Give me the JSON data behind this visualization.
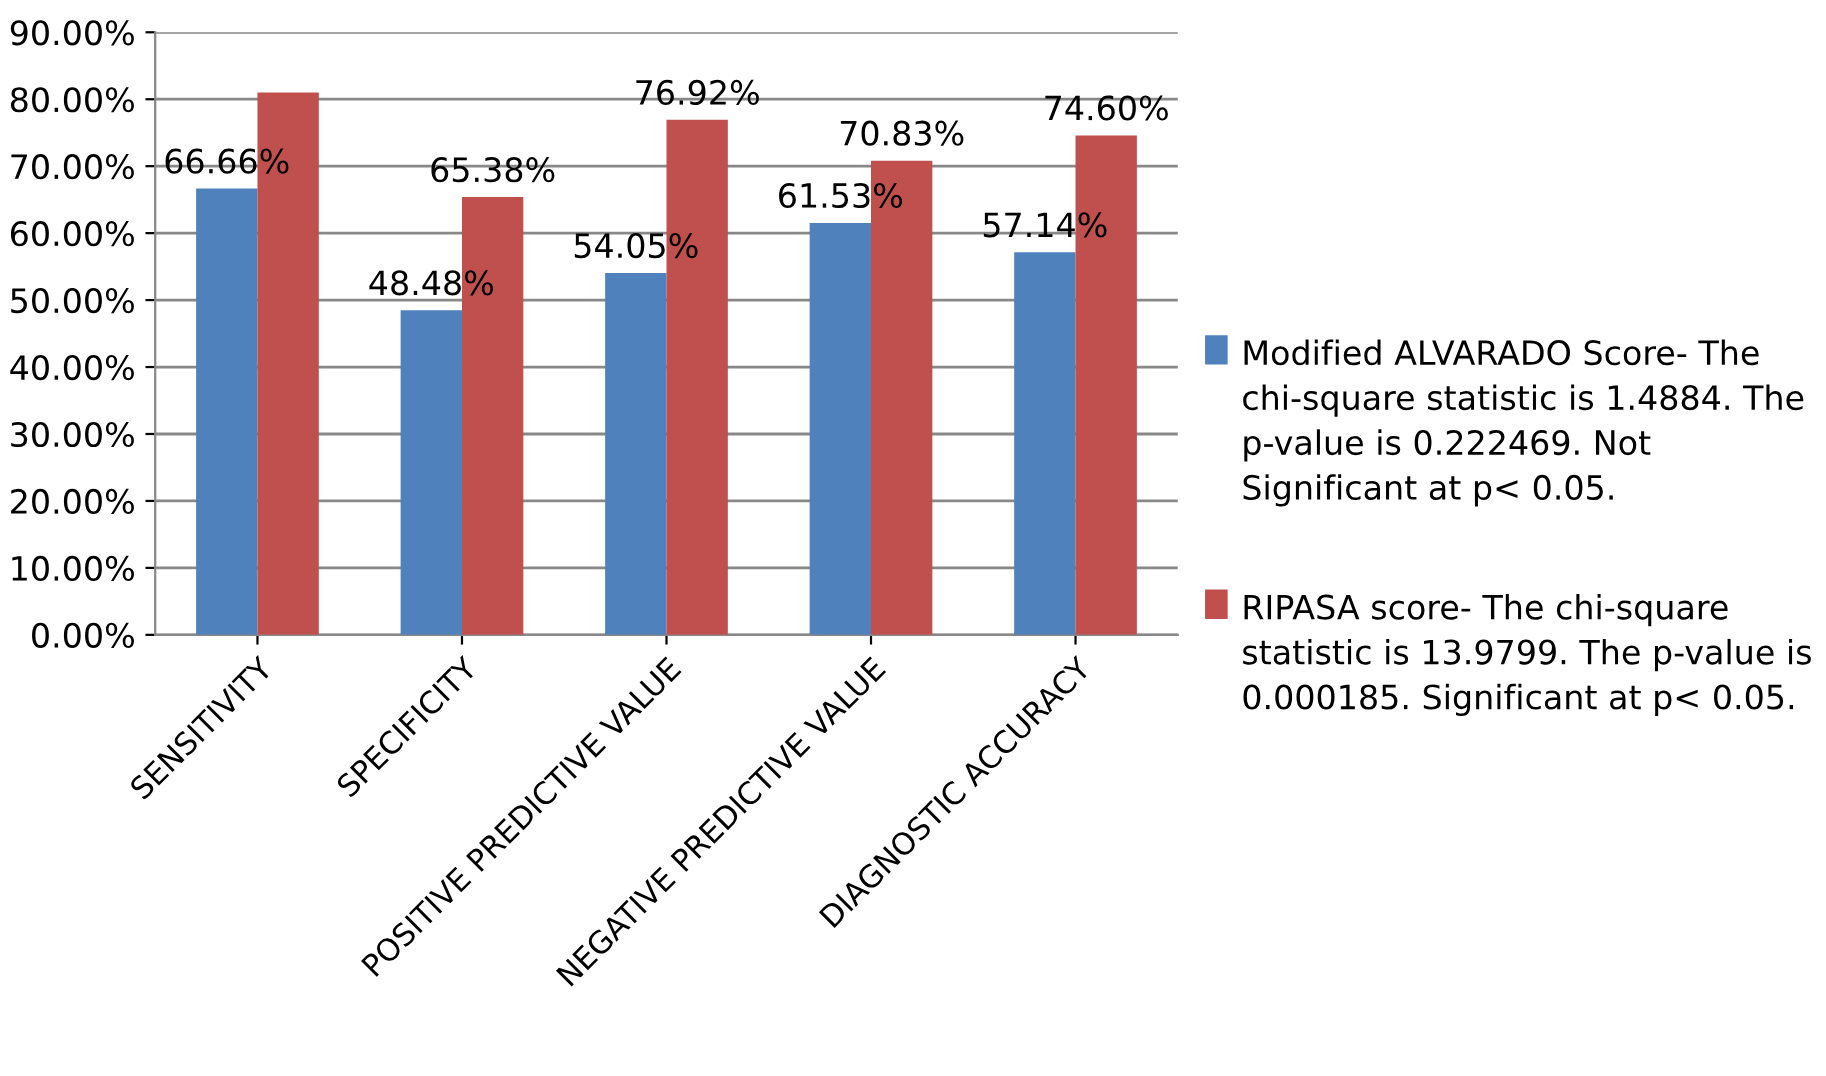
{
  "chart_data": {
    "type": "bar",
    "categories": [
      "SENSITIVITY",
      "SPECIFICITY",
      "POSITIVE PREDICTIVE VALUE",
      "NEGATIVE PREDICTIVE VALUE",
      "DIAGNOSTIC ACCURACY"
    ],
    "series": [
      {
        "name": "Modified ALVARADO Score- The chi-square statistic is 1.4884. The p-value is 0.222469. Not Significant at p< 0.05.",
        "color": "#4f81bd",
        "values": [
          66.66,
          48.48,
          54.05,
          61.53,
          57.14
        ],
        "value_labels": [
          "66.66%",
          "48.48%",
          "54.05%",
          "61.53%",
          "57.14%"
        ]
      },
      {
        "name": "RIPASA score- The chi-square statistic is 13.9799. The p-value is 0.000185. Significant at p< 0.05.",
        "color": "#c0504d",
        "values": [
          81.0,
          65.38,
          76.92,
          70.83,
          74.6
        ],
        "value_labels": [
          null,
          "65.38%",
          "76.92%",
          "70.83%",
          "74.60%"
        ]
      }
    ],
    "ylim": [
      0,
      90
    ],
    "yticks": [
      {
        "value": 0,
        "label": "0.00%"
      },
      {
        "value": 10,
        "label": "10.00%"
      },
      {
        "value": 20,
        "label": "20.00%"
      },
      {
        "value": 30,
        "label": "30.00%"
      },
      {
        "value": 40,
        "label": "40.00%"
      },
      {
        "value": 50,
        "label": "50.00%"
      },
      {
        "value": 60,
        "label": "60.00%"
      },
      {
        "value": 70,
        "label": "70.00%"
      },
      {
        "value": 80,
        "label": "80.00%"
      },
      {
        "value": 90,
        "label": "90.00%"
      }
    ],
    "grid": "y",
    "legend": "right"
  }
}
